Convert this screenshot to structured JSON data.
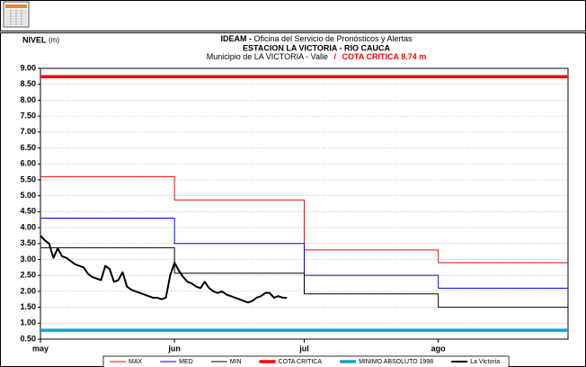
{
  "chart_data": {
    "type": "line",
    "title_bold": "IDEAM -",
    "title": "Oficina del Servicio de Pronósticos y Alertas",
    "subtitle": "ESTACION LA VICTORIA - RIO CAUCA",
    "location": "Municipio de LA VICTORIA - Valle",
    "separator": "/",
    "annotation": "COTA CRITICA 8.74 m",
    "annotation_color": "#ff0000",
    "y_label": "NIVEL",
    "y_unit": "(m)",
    "grid": true,
    "xlim": [
      0,
      122
    ],
    "xticks": [
      {
        "value": 0,
        "label": "may"
      },
      {
        "value": 31,
        "label": "jun"
      },
      {
        "value": 61,
        "label": "jul"
      },
      {
        "value": 92,
        "label": "ago"
      }
    ],
    "ylim": [
      0.5,
      9.0
    ],
    "yticks": [
      {
        "value": 0.5,
        "label": "0.50"
      },
      {
        "value": 1.0,
        "label": "1.00"
      },
      {
        "value": 1.5,
        "label": "1.50"
      },
      {
        "value": 2.0,
        "label": "2.00"
      },
      {
        "value": 2.5,
        "label": "2.50"
      },
      {
        "value": 3.0,
        "label": "3.00"
      },
      {
        "value": 3.5,
        "label": "3.50"
      },
      {
        "value": 4.0,
        "label": "4.00"
      },
      {
        "value": 4.5,
        "label": "4.50"
      },
      {
        "value": 5.0,
        "label": "5.00"
      },
      {
        "value": 5.5,
        "label": "5.50"
      },
      {
        "value": 6.0,
        "label": "6.00"
      },
      {
        "value": 6.5,
        "label": "6.50"
      },
      {
        "value": 7.0,
        "label": "7.00"
      },
      {
        "value": 7.5,
        "label": "7.50"
      },
      {
        "value": 8.0,
        "label": "8.00"
      },
      {
        "value": 8.5,
        "label": "8.50"
      },
      {
        "value": 9.0,
        "label": "9.00"
      }
    ],
    "series": [
      {
        "name": "MAX",
        "color": "#ff0000",
        "line_width": 1,
        "x": [
          0,
          31,
          31,
          61,
          61,
          92,
          92,
          122
        ],
        "values": [
          5.6,
          5.6,
          4.87,
          4.87,
          3.3,
          3.3,
          2.9,
          2.9
        ]
      },
      {
        "name": "MED",
        "color": "#0000ff",
        "line_width": 1,
        "x": [
          0,
          31,
          31,
          61,
          61,
          92,
          92,
          122
        ],
        "values": [
          4.3,
          4.3,
          3.5,
          3.5,
          2.5,
          2.5,
          2.1,
          2.1
        ]
      },
      {
        "name": "MIN",
        "color": "#000000",
        "line_width": 1,
        "x": [
          0,
          31,
          31,
          61,
          61,
          92,
          92,
          122
        ],
        "values": [
          3.37,
          3.37,
          2.57,
          2.57,
          1.92,
          1.92,
          1.5,
          1.5
        ]
      },
      {
        "name": "COTA CRITICA",
        "color": "#ff0000",
        "line_width": 3.5,
        "x": [
          0,
          122
        ],
        "values": [
          8.74,
          8.74
        ]
      },
      {
        "name": "MINIMO ABSOLUTO 1998",
        "color": "#1aa3c8",
        "line_width": 3.5,
        "x": [
          0,
          122
        ],
        "values": [
          0.78,
          0.78
        ]
      },
      {
        "name": "La Victoria",
        "color": "#000000",
        "line_width": 2,
        "x": [
          0,
          1,
          2,
          3,
          4,
          5,
          6,
          7,
          8,
          9,
          10,
          11,
          12,
          13,
          14,
          15,
          16,
          17,
          18,
          19,
          20,
          21,
          22,
          23,
          24,
          25,
          26,
          27,
          28,
          29,
          30,
          31,
          32,
          33,
          34,
          35,
          36,
          37,
          38,
          39,
          40,
          41,
          42,
          43,
          44,
          45,
          46,
          47,
          48,
          49,
          50,
          51,
          52,
          53,
          54,
          55,
          56,
          57
        ],
        "values": [
          3.75,
          3.6,
          3.5,
          3.05,
          3.35,
          3.1,
          3.05,
          2.95,
          2.85,
          2.8,
          2.75,
          2.55,
          2.45,
          2.4,
          2.35,
          2.8,
          2.7,
          2.3,
          2.35,
          2.6,
          2.15,
          2.05,
          2.0,
          1.95,
          1.9,
          1.85,
          1.8,
          1.8,
          1.75,
          1.8,
          2.5,
          2.9,
          2.65,
          2.45,
          2.3,
          2.25,
          2.15,
          2.1,
          2.3,
          2.1,
          2.0,
          1.95,
          2.0,
          1.9,
          1.85,
          1.8,
          1.75,
          1.7,
          1.65,
          1.7,
          1.8,
          1.85,
          1.95,
          1.95,
          1.8,
          1.85,
          1.8,
          1.8
        ]
      }
    ]
  }
}
